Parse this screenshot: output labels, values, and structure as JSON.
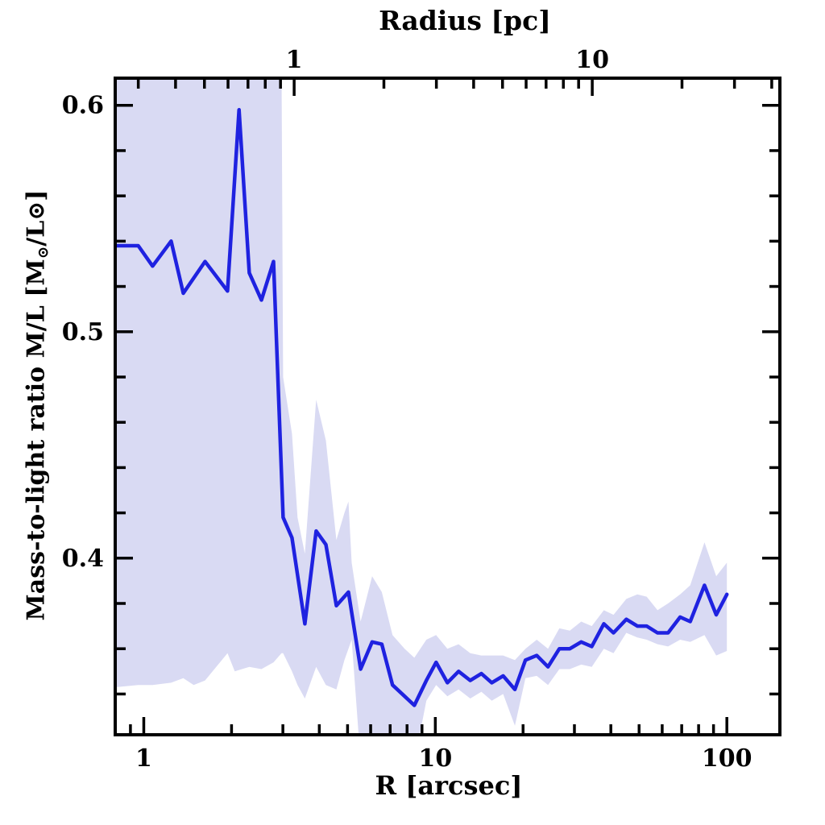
{
  "chart_data": {
    "type": "line",
    "top_axis_title": "Radius [pc]",
    "xlabel": "R [arcsec]",
    "ylabel": "Mass-to-light ratio M/L [M⊙/L⊙]",
    "ylabel_parts": {
      "prefix": "Mass-to-light ratio M/L [M",
      "sub_sun": "⊙",
      "mid": "/L",
      "sun": "⊙",
      "suffix": "]"
    },
    "x_axis_bottom": {
      "scale": "log",
      "unit": "arcsec",
      "range": [
        0.798,
        152
      ],
      "major_ticks": [
        1,
        10,
        100
      ],
      "major_tick_labels": [
        "1",
        "10",
        "100"
      ],
      "minor_ticks": [
        0.9,
        2,
        3,
        4,
        5,
        6,
        7,
        8,
        9,
        20,
        30,
        40,
        50,
        60,
        70,
        80,
        90
      ]
    },
    "x_axis_top": {
      "scale": "log",
      "unit": "pc",
      "range": [
        0.251,
        42.6
      ],
      "major_ticks": [
        1,
        10
      ],
      "major_tick_labels": [
        "1",
        "10"
      ],
      "minor_ticks": [
        0.3,
        0.4,
        0.5,
        0.6,
        0.7,
        0.8,
        0.9,
        2,
        3,
        4,
        5,
        6,
        7,
        8,
        9,
        20,
        30,
        40
      ]
    },
    "y_axis": {
      "scale": "linear",
      "range": [
        0.322,
        0.612
      ],
      "major_ticks": [
        0.4,
        0.5,
        0.6
      ],
      "major_tick_labels": [
        "0.4",
        "0.5",
        "0.6"
      ],
      "minor_ticks": [
        0.34,
        0.36,
        0.38,
        0.42,
        0.44,
        0.46,
        0.48,
        0.52,
        0.54,
        0.56,
        0.58
      ]
    },
    "grid": false,
    "legend": null,
    "series": [
      {
        "name": "mass-to-light-ratio-profile",
        "color": "#1f22e0",
        "x": [
          0.795,
          0.957,
          1.072,
          1.241,
          1.366,
          1.622,
          1.938,
          2.122,
          2.3,
          2.532,
          2.786,
          3.005,
          3.223,
          3.568,
          3.901,
          4.213,
          4.576,
          5.036,
          5.543,
          6.07,
          6.554,
          7.131,
          7.846,
          8.474,
          9.318,
          10.06,
          11.0,
          12.02,
          13.18,
          14.39,
          15.62,
          17.08,
          18.75,
          20.38,
          22.28,
          24.35,
          26.64,
          28.94,
          31.65,
          34.41,
          37.84,
          40.85,
          45.2,
          49.31,
          53.1,
          57.81,
          62.85,
          69.13,
          74.88,
          83.77,
          91.95,
          100.0
        ],
        "y": [
          0.538,
          0.538,
          0.529,
          0.54,
          0.517,
          0.531,
          0.518,
          0.598,
          0.526,
          0.514,
          0.531,
          0.418,
          0.409,
          0.371,
          0.412,
          0.406,
          0.379,
          0.385,
          0.351,
          0.363,
          0.362,
          0.344,
          0.339,
          0.335,
          0.346,
          0.354,
          0.345,
          0.35,
          0.346,
          0.349,
          0.345,
          0.348,
          0.342,
          0.355,
          0.357,
          0.352,
          0.36,
          0.36,
          0.363,
          0.361,
          0.371,
          0.367,
          0.373,
          0.37,
          0.37,
          0.367,
          0.367,
          0.374,
          0.372,
          0.388,
          0.375,
          0.384
        ]
      }
    ],
    "band": {
      "name": "uncertainty-band",
      "color": "#d9daf3",
      "x": [
        0.795,
        0.957,
        1.072,
        1.241,
        1.366,
        1.483,
        1.622,
        1.938,
        2.052,
        2.3,
        2.532,
        2.786,
        2.968,
        3.005,
        3.223,
        3.369,
        3.568,
        3.901,
        4.213,
        4.576,
        4.878,
        5.036,
        5.165,
        5.543,
        6.07,
        6.554,
        7.131,
        7.846,
        8.474,
        9.318,
        10.06,
        11.0,
        12.02,
        13.18,
        14.39,
        15.62,
        17.08,
        18.75,
        20.38,
        22.28,
        24.35,
        26.64,
        28.94,
        31.65,
        34.41,
        37.84,
        40.85,
        45.2,
        49.31,
        53.1,
        57.81,
        62.85,
        69.13,
        74.88,
        83.77,
        91.95,
        100.0
      ],
      "lo": [
        0.343,
        0.344,
        0.344,
        0.345,
        0.347,
        0.344,
        0.346,
        0.358,
        0.35,
        0.352,
        0.351,
        0.354,
        0.358,
        0.358,
        0.35,
        0.344,
        0.338,
        0.352,
        0.344,
        0.342,
        0.355,
        0.36,
        0.364,
        0.31,
        0.302,
        0.31,
        0.305,
        0.312,
        0.31,
        0.337,
        0.344,
        0.339,
        0.342,
        0.338,
        0.341,
        0.337,
        0.34,
        0.326,
        0.347,
        0.348,
        0.344,
        0.351,
        0.351,
        0.353,
        0.352,
        0.36,
        0.358,
        0.367,
        0.365,
        0.364,
        0.362,
        0.361,
        0.364,
        0.363,
        0.366,
        0.357,
        0.359
      ],
      "hi": [
        0.62,
        0.62,
        0.62,
        0.62,
        0.62,
        0.62,
        0.62,
        0.62,
        0.62,
        0.62,
        0.62,
        0.62,
        0.62,
        0.48,
        0.455,
        0.418,
        0.402,
        0.47,
        0.452,
        0.408,
        0.42,
        0.425,
        0.398,
        0.372,
        0.392,
        0.385,
        0.366,
        0.36,
        0.356,
        0.364,
        0.366,
        0.36,
        0.362,
        0.358,
        0.357,
        0.357,
        0.357,
        0.355,
        0.36,
        0.364,
        0.36,
        0.369,
        0.368,
        0.372,
        0.37,
        0.377,
        0.375,
        0.382,
        0.384,
        0.383,
        0.377,
        0.38,
        0.384,
        0.388,
        0.407,
        0.392,
        0.398
      ]
    },
    "frame_color": "#000000",
    "background_color": "#ffffff"
  }
}
